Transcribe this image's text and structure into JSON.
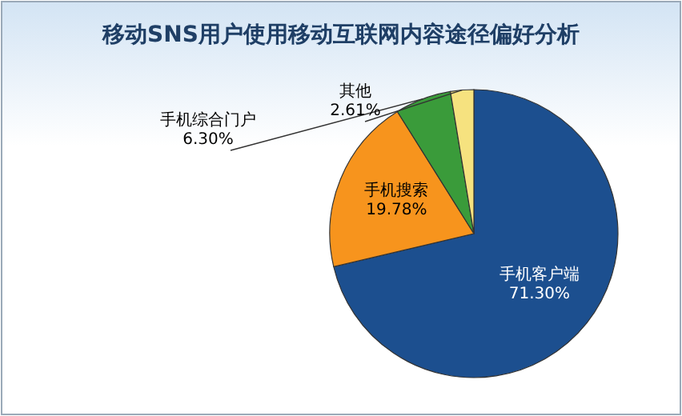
{
  "chart_data": {
    "type": "pie",
    "title": "移动SNS用户使用移动互联网内容途径偏好分析",
    "categories": [
      "手机客户端",
      "手机搜索",
      "手机综合门户",
      "其他"
    ],
    "values": [
      71.3,
      19.78,
      6.3,
      2.61
    ],
    "value_labels": [
      "71.30%",
      "19.78%",
      "6.30%",
      "2.61%"
    ],
    "colors": [
      "#1c4f8f",
      "#f7941d",
      "#3a9b3a",
      "#f6e27f"
    ],
    "legend": false
  }
}
